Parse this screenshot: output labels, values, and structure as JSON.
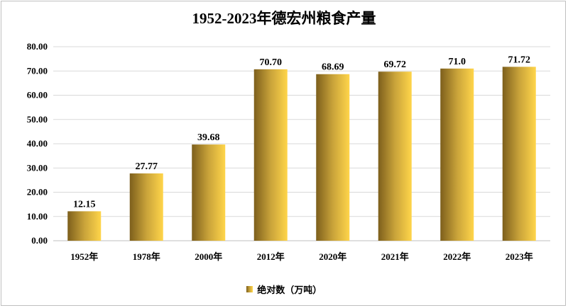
{
  "chart_data": {
    "type": "bar",
    "title": "1952-2023年德宏州粮食产量",
    "categories": [
      "1952年",
      "1978年",
      "2000年",
      "2012年",
      "2020年",
      "2021年",
      "2022年",
      "2023年"
    ],
    "series": [
      {
        "name": "绝对数（万吨）",
        "values": [
          12.15,
          27.77,
          39.68,
          70.7,
          68.69,
          69.72,
          71.0,
          71.72
        ],
        "labels": [
          "12.15",
          "27.77",
          "39.68",
          "70.70",
          "68.69",
          "69.72",
          "71.0",
          "71.72"
        ]
      }
    ],
    "ylim": [
      0,
      80
    ],
    "yticks": [
      "0.00",
      "10.00",
      "20.00",
      "30.00",
      "40.00",
      "50.00",
      "60.00",
      "70.00",
      "80.00"
    ],
    "grid": true,
    "legend": "bottom",
    "colors": {
      "bar_dark": "#7d5f1c",
      "bar_mid": "#c9a33a",
      "bar_light": "#ffd54a",
      "grid": "#d9d9d9"
    }
  }
}
